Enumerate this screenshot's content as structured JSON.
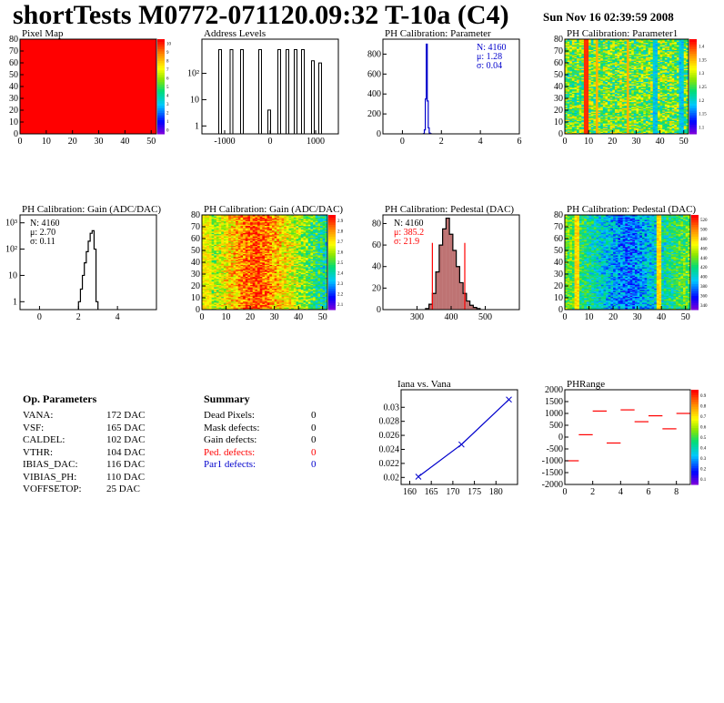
{
  "title": "shortTests M0772-071120.09:32 T-10a (C4)",
  "date": "Sun Nov 16 02:39:59 2008",
  "colors": {
    "red": "#ff0000",
    "blue": "#0000cc",
    "black": "#000000",
    "dark_red": "#880000"
  },
  "chart_data": [
    {
      "type": "heatmap",
      "title": "Pixel Map",
      "xlim": [
        0,
        52
      ],
      "ylim": [
        0,
        80
      ],
      "xticks": [
        0,
        10,
        20,
        30,
        40,
        50
      ],
      "yticks": [
        0,
        10,
        20,
        30,
        40,
        50,
        60,
        70,
        80
      ],
      "fill": "uniform-red",
      "zticks": [
        "0",
        "1",
        "2",
        "3",
        "4",
        "5",
        "6",
        "7",
        "8",
        "9",
        "10"
      ]
    },
    {
      "type": "bar",
      "title": "Address Levels",
      "scale": "log",
      "xlim": [
        -1500,
        1500
      ],
      "xticks": [
        -1000,
        0,
        1000
      ],
      "ylim": [
        0.5,
        2000
      ],
      "yticks": [
        {
          "v": 1,
          "label": "1"
        },
        {
          "v": 10,
          "label": "10"
        },
        {
          "v": 100,
          "label": "10²"
        }
      ],
      "peaks": [
        -1100,
        -850,
        -620,
        -220,
        -20,
        200,
        380,
        560,
        720,
        940,
        1100
      ],
      "values": [
        800,
        800,
        800,
        800,
        4,
        800,
        800,
        800,
        800,
        300,
        250
      ]
    },
    {
      "type": "bar",
      "title": "PH Calibration: Parameter",
      "xlim": [
        -1,
        6
      ],
      "xticks": [
        0,
        2,
        4,
        6
      ],
      "ylim": [
        0,
        950
      ],
      "yticks": [
        0,
        200,
        400,
        600,
        800
      ],
      "values_x": [
        1.1,
        1.15,
        1.2,
        1.25,
        1.3,
        1.35,
        1.4,
        1.45
      ],
      "values": [
        2,
        40,
        350,
        900,
        330,
        60,
        8,
        2
      ],
      "stats": {
        "n": "N: 4160",
        "mean": "μ: 1.28",
        "sigma": "σ: 0.04"
      }
    },
    {
      "type": "heatmap",
      "title": "PH Calibration: Parameter1",
      "xlim": [
        0,
        52
      ],
      "ylim": [
        0,
        80
      ],
      "xticks": [
        0,
        10,
        20,
        30,
        40,
        50
      ],
      "yticks": [
        0,
        10,
        20,
        30,
        40,
        50,
        60,
        70,
        80
      ],
      "zticks": [
        "1.1",
        "1.15",
        "1.2",
        "1.25",
        "1.3",
        "1.35",
        "1.4"
      ]
    },
    {
      "type": "bar",
      "title": "PH Calibration: Gain (ADC/DAC)",
      "scale": "log",
      "xlim": [
        -1,
        6
      ],
      "xticks": [
        0,
        2,
        4
      ],
      "ylim": [
        0.5,
        2000
      ],
      "yticks": [
        {
          "v": 1,
          "label": "1"
        },
        {
          "v": 10,
          "label": "10"
        },
        {
          "v": 100,
          "label": "10²"
        },
        {
          "v": 1000,
          "label": "10³"
        }
      ],
      "values_x": [
        2.05,
        2.15,
        2.25,
        2.35,
        2.45,
        2.55,
        2.65,
        2.75,
        2.85,
        2.95
      ],
      "values": [
        1,
        3,
        10,
        30,
        80,
        200,
        400,
        500,
        100,
        1
      ],
      "stats": {
        "n": "N: 4160",
        "mean": "μ: 2.70",
        "sigma": "σ: 0.11"
      }
    },
    {
      "type": "heatmap",
      "title": "PH Calibration: Gain (ADC/DAC)",
      "xlim": [
        0,
        52
      ],
      "ylim": [
        0,
        80
      ],
      "xticks": [
        0,
        10,
        20,
        30,
        40,
        50
      ],
      "yticks": [
        0,
        10,
        20,
        30,
        40,
        50,
        60,
        70,
        80
      ],
      "zticks": [
        "2.1",
        "2.2",
        "2.3",
        "2.4",
        "2.5",
        "2.6",
        "2.7",
        "2.8",
        "2.9"
      ]
    },
    {
      "type": "bar",
      "title": "PH Calibration: Pedestal (DAC)",
      "xlim": [
        200,
        600
      ],
      "xticks": [
        300,
        400,
        500
      ],
      "ylim": [
        0,
        88
      ],
      "yticks": [
        0,
        20,
        40,
        60,
        80
      ],
      "values_x": [
        330,
        340,
        350,
        360,
        370,
        380,
        390,
        400,
        410,
        420,
        430,
        440,
        450,
        460,
        470,
        480
      ],
      "values": [
        1,
        5,
        15,
        35,
        60,
        75,
        85,
        70,
        55,
        40,
        25,
        15,
        8,
        4,
        2,
        1
      ],
      "cut_lines": [
        345,
        440
      ],
      "stats": {
        "n": "N: 4160",
        "mean": "μ: 385.2",
        "sigma": "σ: 21.9"
      }
    },
    {
      "type": "heatmap",
      "title": "PH Calibration: Pedestal (DAC)",
      "xlim": [
        0,
        52
      ],
      "ylim": [
        0,
        80
      ],
      "xticks": [
        0,
        10,
        20,
        30,
        40,
        50
      ],
      "yticks": [
        0,
        10,
        20,
        30,
        40,
        50,
        60,
        70,
        80
      ],
      "zticks": [
        "340",
        "360",
        "380",
        "400",
        "420",
        "440",
        "460",
        "480",
        "500",
        "520"
      ]
    },
    {
      "type": "line",
      "title": "Iana vs. Vana",
      "xlim": [
        158,
        185
      ],
      "xticks": [
        160,
        165,
        170,
        175,
        180
      ],
      "ylim": [
        0.019,
        0.0325
      ],
      "yticks": [
        0.02,
        0.022,
        0.024,
        0.026,
        0.028,
        0.03
      ],
      "x": [
        162,
        172,
        183
      ],
      "y": [
        0.0201,
        0.0247,
        0.0311
      ]
    },
    {
      "type": "scatter",
      "title": "PHRange",
      "xlim": [
        0,
        9
      ],
      "xticks": [
        0,
        2,
        4,
        6,
        8
      ],
      "ylim": [
        -2000,
        2000
      ],
      "yticks": [
        -2000,
        -1500,
        -1000,
        -500,
        0,
        500,
        1000,
        1500,
        2000
      ],
      "x": [
        0.5,
        1.5,
        2.5,
        3.5,
        4.5,
        5.5,
        6.5,
        7.5,
        8.5
      ],
      "y": [
        -1000,
        100,
        1100,
        -250,
        1150,
        650,
        900,
        350,
        1000
      ],
      "zticks": [
        "0.1",
        "0.2",
        "0.3",
        "0.4",
        "0.5",
        "0.6",
        "0.7",
        "0.8",
        "0.9"
      ]
    }
  ],
  "op_parameters": {
    "header": "Op. Parameters",
    "rows": [
      {
        "name": "VANA:",
        "value": "172 DAC"
      },
      {
        "name": "VSF:",
        "value": "165 DAC"
      },
      {
        "name": "CALDEL:",
        "value": "102 DAC"
      },
      {
        "name": "VTHR:",
        "value": "104 DAC"
      },
      {
        "name": "IBIAS_DAC:",
        "value": "116 DAC"
      },
      {
        "name": "VIBIAS_PH:",
        "value": "110 DAC"
      },
      {
        "name": "VOFFSETOP:",
        "value": "25 DAC"
      }
    ]
  },
  "summary": {
    "header": "Summary",
    "rows": [
      {
        "name": "Dead Pixels:",
        "value": "0",
        "color": "#000000"
      },
      {
        "name": "Mask defects:",
        "value": "0",
        "color": "#000000"
      },
      {
        "name": "Gain defects:",
        "value": "0",
        "color": "#000000"
      },
      {
        "name": "Ped. defects:",
        "value": "0",
        "color": "#ff0000"
      },
      {
        "name": "Par1 defects:",
        "value": "0",
        "color": "#0000cc"
      }
    ]
  }
}
